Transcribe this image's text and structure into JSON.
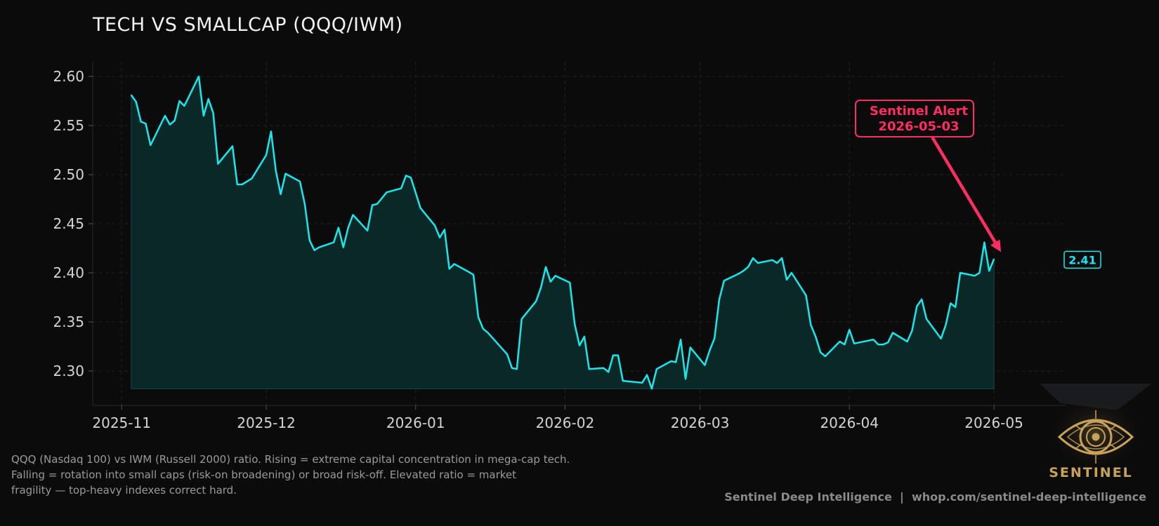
{
  "chart_data": {
    "type": "area",
    "title": "TECH VS SMALLCAP (QQQ/IWM)",
    "xlabel": "",
    "ylabel": "",
    "ylim": [
      2.265,
      2.615
    ],
    "yticks": [
      "2.30",
      "2.35",
      "2.40",
      "2.45",
      "2.50",
      "2.55",
      "2.60"
    ],
    "xlim": [
      "2025-10-26",
      "2026-05-16"
    ],
    "xticks": [
      {
        "date": "2025-11-01",
        "label": "2025-11"
      },
      {
        "date": "2025-12-01",
        "label": "2025-12"
      },
      {
        "date": "2026-01-01",
        "label": "2026-01"
      },
      {
        "date": "2026-02-01",
        "label": "2026-02"
      },
      {
        "date": "2026-03-01",
        "label": "2026-03"
      },
      {
        "date": "2026-04-01",
        "label": "2026-04"
      },
      {
        "date": "2026-05-01",
        "label": "2026-05"
      }
    ],
    "grid": true,
    "line_color": "#17e8ee",
    "fill_color": "#0a2826",
    "series": [
      {
        "values": [
          [
            "2025-11-03",
            2.581
          ],
          [
            "2025-11-04",
            2.574
          ],
          [
            "2025-11-05",
            2.554
          ],
          [
            "2025-11-06",
            2.552
          ],
          [
            "2025-11-07",
            2.53
          ],
          [
            "2025-11-10",
            2.56
          ],
          [
            "2025-11-11",
            2.551
          ],
          [
            "2025-11-12",
            2.555
          ],
          [
            "2025-11-13",
            2.575
          ],
          [
            "2025-11-14",
            2.57
          ],
          [
            "2025-11-17",
            2.6
          ],
          [
            "2025-11-18",
            2.56
          ],
          [
            "2025-11-19",
            2.577
          ],
          [
            "2025-11-20",
            2.563
          ],
          [
            "2025-11-21",
            2.511
          ],
          [
            "2025-11-24",
            2.529
          ],
          [
            "2025-11-25",
            2.49
          ],
          [
            "2025-11-26",
            2.49
          ],
          [
            "2025-11-28",
            2.496
          ],
          [
            "2025-12-01",
            2.52
          ],
          [
            "2025-12-02",
            2.544
          ],
          [
            "2025-12-03",
            2.504
          ],
          [
            "2025-12-04",
            2.48
          ],
          [
            "2025-12-05",
            2.501
          ],
          [
            "2025-12-08",
            2.493
          ],
          [
            "2025-12-09",
            2.47
          ],
          [
            "2025-12-10",
            2.433
          ],
          [
            "2025-12-11",
            2.423
          ],
          [
            "2025-12-12",
            2.426
          ],
          [
            "2025-12-15",
            2.431
          ],
          [
            "2025-12-16",
            2.446
          ],
          [
            "2025-12-17",
            2.426
          ],
          [
            "2025-12-18",
            2.446
          ],
          [
            "2025-12-19",
            2.459
          ],
          [
            "2025-12-22",
            2.443
          ],
          [
            "2025-12-23",
            2.469
          ],
          [
            "2025-12-24",
            2.47
          ],
          [
            "2025-12-26",
            2.482
          ],
          [
            "2025-12-29",
            2.486
          ],
          [
            "2025-12-30",
            2.499
          ],
          [
            "2025-12-31",
            2.497
          ],
          [
            "2026-01-02",
            2.466
          ],
          [
            "2026-01-05",
            2.448
          ],
          [
            "2026-01-06",
            2.436
          ],
          [
            "2026-01-07",
            2.444
          ],
          [
            "2026-01-08",
            2.404
          ],
          [
            "2026-01-09",
            2.409
          ],
          [
            "2026-01-12",
            2.401
          ],
          [
            "2026-01-13",
            2.398
          ],
          [
            "2026-01-14",
            2.355
          ],
          [
            "2026-01-15",
            2.343
          ],
          [
            "2026-01-16",
            2.339
          ],
          [
            "2026-01-20",
            2.317
          ],
          [
            "2026-01-21",
            2.303
          ],
          [
            "2026-01-22",
            2.302
          ],
          [
            "2026-01-23",
            2.353
          ],
          [
            "2026-01-26",
            2.371
          ],
          [
            "2026-01-27",
            2.385
          ],
          [
            "2026-01-28",
            2.406
          ],
          [
            "2026-01-29",
            2.391
          ],
          [
            "2026-01-30",
            2.397
          ],
          [
            "2026-02-02",
            2.39
          ],
          [
            "2026-02-03",
            2.348
          ],
          [
            "2026-02-04",
            2.326
          ],
          [
            "2026-02-05",
            2.335
          ],
          [
            "2026-02-06",
            2.302
          ],
          [
            "2026-02-09",
            2.303
          ],
          [
            "2026-02-10",
            2.299
          ],
          [
            "2026-02-11",
            2.316
          ],
          [
            "2026-02-12",
            2.316
          ],
          [
            "2026-02-13",
            2.29
          ],
          [
            "2026-02-17",
            2.288
          ],
          [
            "2026-02-18",
            2.296
          ],
          [
            "2026-02-19",
            2.282
          ],
          [
            "2026-02-20",
            2.302
          ],
          [
            "2026-02-23",
            2.31
          ],
          [
            "2026-02-24",
            2.309
          ],
          [
            "2026-02-25",
            2.332
          ],
          [
            "2026-02-26",
            2.292
          ],
          [
            "2026-02-27",
            2.324
          ],
          [
            "2026-03-02",
            2.306
          ],
          [
            "2026-03-03",
            2.321
          ],
          [
            "2026-03-04",
            2.333
          ],
          [
            "2026-03-05",
            2.373
          ],
          [
            "2026-03-06",
            2.392
          ],
          [
            "2026-03-09",
            2.399
          ],
          [
            "2026-03-10",
            2.402
          ],
          [
            "2026-03-11",
            2.406
          ],
          [
            "2026-03-12",
            2.415
          ],
          [
            "2026-03-13",
            2.41
          ],
          [
            "2026-03-16",
            2.413
          ],
          [
            "2026-03-17",
            2.41
          ],
          [
            "2026-03-18",
            2.415
          ],
          [
            "2026-03-19",
            2.393
          ],
          [
            "2026-03-20",
            2.4
          ],
          [
            "2026-03-23",
            2.377
          ],
          [
            "2026-03-24",
            2.347
          ],
          [
            "2026-03-25",
            2.335
          ],
          [
            "2026-03-26",
            2.319
          ],
          [
            "2026-03-27",
            2.315
          ],
          [
            "2026-03-30",
            2.33
          ],
          [
            "2026-03-31",
            2.327
          ],
          [
            "2026-04-01",
            2.342
          ],
          [
            "2026-04-02",
            2.328
          ],
          [
            "2026-04-06",
            2.332
          ],
          [
            "2026-04-07",
            2.327
          ],
          [
            "2026-04-08",
            2.327
          ],
          [
            "2026-04-09",
            2.329
          ],
          [
            "2026-04-10",
            2.339
          ],
          [
            "2026-04-13",
            2.33
          ],
          [
            "2026-04-14",
            2.341
          ],
          [
            "2026-04-15",
            2.366
          ],
          [
            "2026-04-16",
            2.373
          ],
          [
            "2026-04-17",
            2.353
          ],
          [
            "2026-04-20",
            2.333
          ],
          [
            "2026-04-21",
            2.347
          ],
          [
            "2026-04-22",
            2.369
          ],
          [
            "2026-04-23",
            2.365
          ],
          [
            "2026-04-24",
            2.4
          ],
          [
            "2026-04-27",
            2.397
          ],
          [
            "2026-04-28",
            2.4
          ],
          [
            "2026-04-29",
            2.431
          ],
          [
            "2026-04-30",
            2.402
          ],
          [
            "2026-05-01",
            2.414
          ]
        ]
      }
    ],
    "last_value_label": "2.41",
    "annotation": {
      "line1": "Sentinel Alert",
      "line2": "2026-05-03",
      "color": "#ff2d62",
      "target_date": "2026-05-01",
      "target_value": 2.414
    }
  },
  "caption": {
    "line1": "QQQ (Nasdaq 100) vs IWM (Russell 2000) ratio. Rising = extreme capital concentration in mega-cap tech.",
    "line2": "Falling = rotation into small caps (risk-on broadening) or broad risk-off. Elevated ratio = market",
    "line3": "fragility — top-heavy indexes correct hard."
  },
  "footer": "Sentinel Deep Intelligence  |  whop.com/sentinel-deep-intelligence",
  "logo": {
    "word": "SENTINEL",
    "icon": "eye-icon",
    "color": "#c9a25a"
  }
}
